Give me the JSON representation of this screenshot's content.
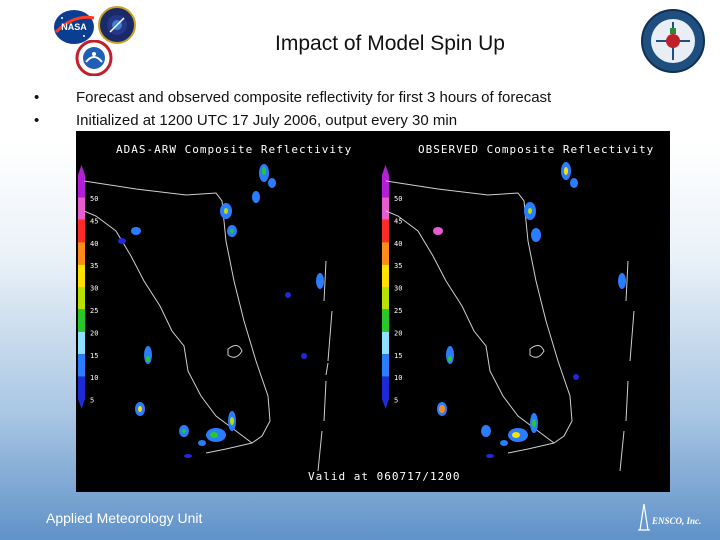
{
  "slide": {
    "title": "Impact of Model Spin Up",
    "bullets": [
      {
        "marker": "•",
        "text": "Forecast and observed composite reflectivity for first 3 hours of forecast"
      },
      {
        "marker": "•",
        "text": "Initialized at 1200 UTC 17 July 2006, output every 30 min"
      }
    ],
    "footer_left": "Applied Meteorology Unit",
    "footer_right": "ENSCO, Inc."
  },
  "logos": {
    "nasa": {
      "text": "NASA",
      "icon": "nasa-meatball-icon"
    },
    "seal": {
      "icon": "space-seal-icon"
    },
    "nws": {
      "icon": "nws-logo-icon"
    },
    "amu": {
      "icon": "amu-seal-icon"
    }
  },
  "figure": {
    "left_panel_title": "ADAS-ARW Composite Reflectivity",
    "right_panel_title": "OBSERVED Composite Reflectivity",
    "valid_text": "Valid at 060717/1200",
    "colorbar_labels": [
      "50",
      "45",
      "40",
      "35",
      "30",
      "25",
      "20",
      "15",
      "10",
      "5"
    ],
    "colorbar_colors": [
      "#b21fd6",
      "#e85cd0",
      "#ff2a2a",
      "#ff8c1a",
      "#ffe100",
      "#b8e000",
      "#2bc82b",
      "#8fe0ff",
      "#2a7dff",
      "#1e2ad6"
    ]
  },
  "colors": {
    "text": "#111111",
    "footer_gradient_bottom": "#5f92c8",
    "figure_bg": "#000000"
  }
}
